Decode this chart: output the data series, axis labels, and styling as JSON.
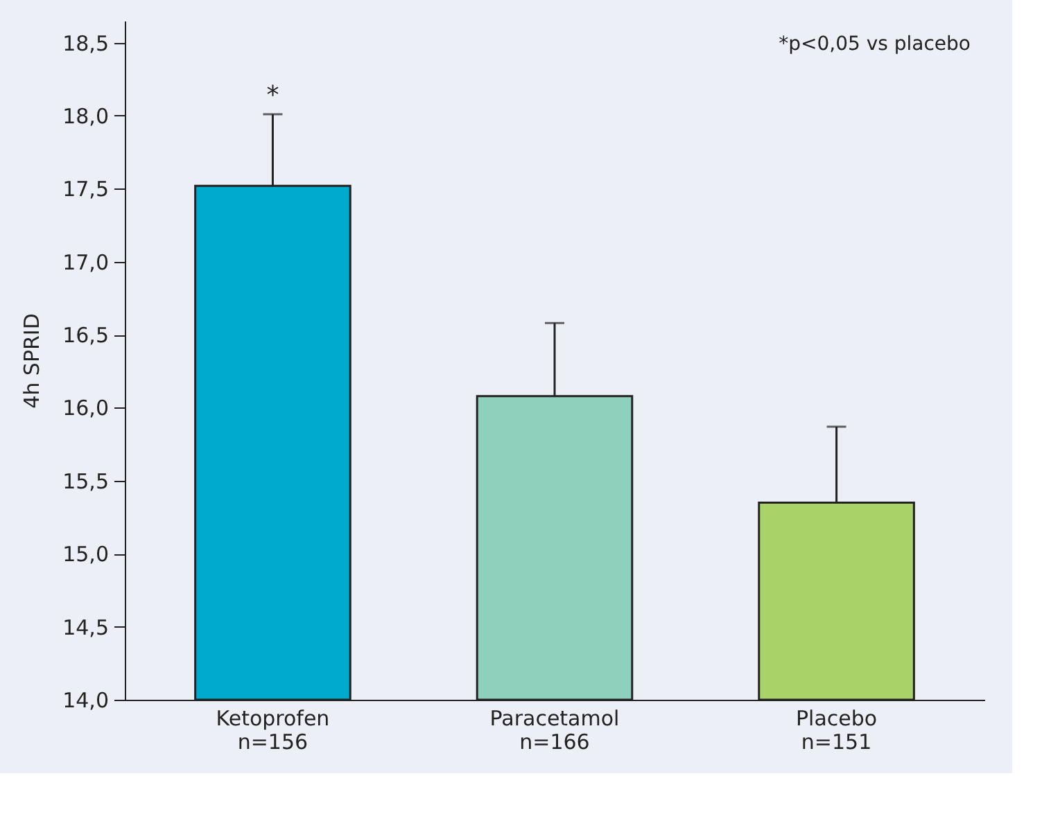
{
  "chart_data": {
    "type": "bar",
    "ylabel": "4h SPRID",
    "categories": [
      "Ketoprofen\nn=156",
      "Paracetamol\nn=166",
      "Placebo\nn=151"
    ],
    "values": [
      17.52,
      16.08,
      15.35
    ],
    "colors": [
      "#00aacf",
      "#8fd0bd",
      "#a9d268"
    ],
    "errors": [
      [
        17.52,
        18.01
      ],
      [
        16.08,
        16.58
      ],
      [
        15.35,
        15.87
      ]
    ],
    "ylim": [
      14,
      18.65
    ],
    "yticks": [
      {
        "value": 14,
        "label": "14,0"
      },
      {
        "value": 14.5,
        "label": "14,5"
      },
      {
        "value": 15,
        "label": "15,0"
      },
      {
        "value": 15.5,
        "label": "15,5"
      },
      {
        "value": 16,
        "label": "16,0"
      },
      {
        "value": 16.5,
        "label": "16,5"
      },
      {
        "value": 17,
        "label": "17,0"
      },
      {
        "value": 17.5,
        "label": "17,5"
      },
      {
        "value": 18,
        "label": "18,0"
      },
      {
        "value": 18.5,
        "label": "18,5"
      }
    ],
    "annotations": [
      "*",
      "*p<0,05 vs placebo"
    ],
    "grid": false
  }
}
